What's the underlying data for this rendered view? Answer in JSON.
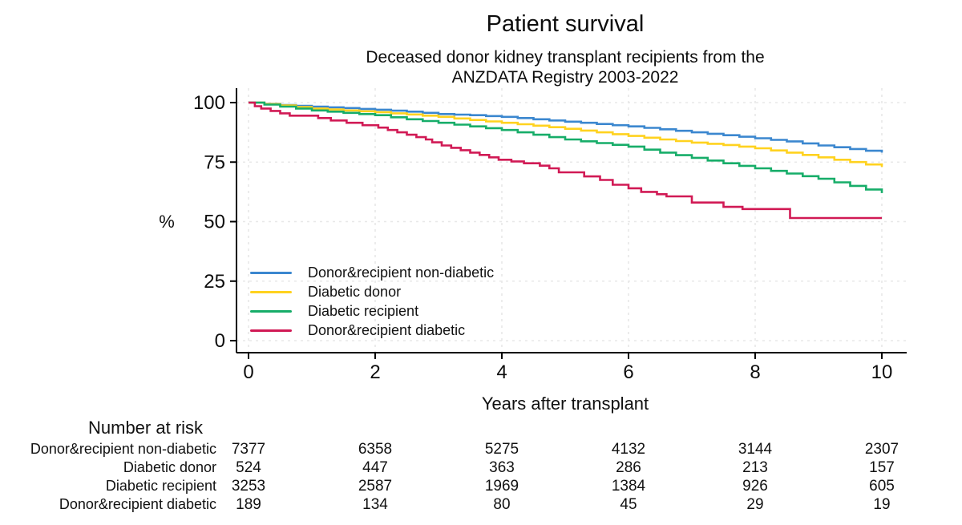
{
  "header": {
    "title": "Patient survival",
    "subtitle_line1": "Deceased donor kidney transplant recipients from the",
    "subtitle_line2": "ANZDATA Registry 2003-2022"
  },
  "chart_data": {
    "type": "line",
    "subtype": "kaplan-meier-step",
    "title": "Patient survival",
    "subtitle": "Deceased donor kidney transplant recipients from the ANZDATA Registry 2003-2022",
    "xlabel": "Years after transplant",
    "ylabel": "%",
    "xlim": [
      0,
      10
    ],
    "ylim": [
      0,
      100
    ],
    "x_ticks": [
      0,
      2,
      4,
      6,
      8,
      10
    ],
    "y_ticks": [
      0,
      25,
      50,
      75,
      100
    ],
    "grid": "light-dashed-both-axes",
    "legend_position": "inside-lower-left",
    "axis_color": "#000000",
    "grid_color": "#e8e8e8",
    "series": [
      {
        "name": "Donor&recipient non-diabetic",
        "color": "#3b87cf",
        "step": "smooth",
        "points": [
          [
            0,
            100
          ],
          [
            0.5,
            99
          ],
          [
            1,
            98.3
          ],
          [
            1.5,
            97.7
          ],
          [
            2,
            97
          ],
          [
            2.5,
            96.2
          ],
          [
            3,
            95.2
          ],
          [
            3.5,
            94.7
          ],
          [
            4,
            94
          ],
          [
            4.5,
            93
          ],
          [
            5,
            92
          ],
          [
            5.5,
            91
          ],
          [
            6,
            90
          ],
          [
            6.5,
            88.8
          ],
          [
            7,
            87.5
          ],
          [
            7.5,
            86.3
          ],
          [
            8,
            85
          ],
          [
            8.5,
            83.7
          ],
          [
            9,
            82
          ],
          [
            9.5,
            80.5
          ],
          [
            10,
            79
          ]
        ]
      },
      {
        "name": "Diabetic donor",
        "color": "#ffd21f",
        "step": "smooth",
        "points": [
          [
            0,
            100
          ],
          [
            0.5,
            98.8
          ],
          [
            1,
            97.5
          ],
          [
            1.5,
            96.7
          ],
          [
            2,
            96
          ],
          [
            2.5,
            95
          ],
          [
            3,
            94
          ],
          [
            3.5,
            92.7
          ],
          [
            4,
            91.5
          ],
          [
            4.5,
            90.3
          ],
          [
            5,
            89
          ],
          [
            5.5,
            87.5
          ],
          [
            6,
            86
          ],
          [
            6.5,
            84.5
          ],
          [
            7,
            83.2
          ],
          [
            7.5,
            82.2
          ],
          [
            8,
            80.8
          ],
          [
            8.5,
            79
          ],
          [
            9,
            77
          ],
          [
            9.5,
            75
          ],
          [
            10,
            73
          ]
        ]
      },
      {
        "name": "Diabetic recipient",
        "color": "#17ad69",
        "step": "smooth",
        "points": [
          [
            0,
            100
          ],
          [
            0.5,
            98.3
          ],
          [
            1,
            96.7
          ],
          [
            1.5,
            95.7
          ],
          [
            2,
            94.7
          ],
          [
            2.5,
            93
          ],
          [
            3,
            91.5
          ],
          [
            3.5,
            90
          ],
          [
            4,
            88.5
          ],
          [
            4.5,
            86.5
          ],
          [
            5,
            84.5
          ],
          [
            5.5,
            83
          ],
          [
            6,
            81.5
          ],
          [
            6.5,
            79
          ],
          [
            7,
            76.8
          ],
          [
            7.5,
            74.5
          ],
          [
            8,
            72.4
          ],
          [
            8.5,
            70.2
          ],
          [
            9,
            68
          ],
          [
            9.5,
            65
          ],
          [
            10,
            62
          ]
        ]
      },
      {
        "name": "Donor&recipient diabetic",
        "color": "#d11a55",
        "step": "exact",
        "points": [
          [
            0,
            100
          ],
          [
            0.1,
            98.5
          ],
          [
            0.2,
            97.5
          ],
          [
            0.35,
            96.5
          ],
          [
            0.5,
            95.5
          ],
          [
            0.65,
            94.5
          ],
          [
            1.1,
            93.5
          ],
          [
            1.3,
            92.5
          ],
          [
            1.55,
            91.5
          ],
          [
            1.8,
            90.5
          ],
          [
            2.05,
            89.5
          ],
          [
            2.2,
            88.5
          ],
          [
            2.35,
            87.5
          ],
          [
            2.5,
            86.5
          ],
          [
            2.65,
            85.5
          ],
          [
            2.8,
            84.5
          ],
          [
            2.9,
            83.3
          ],
          [
            3.05,
            82
          ],
          [
            3.2,
            81
          ],
          [
            3.35,
            80
          ],
          [
            3.5,
            79
          ],
          [
            3.65,
            78
          ],
          [
            3.8,
            77
          ],
          [
            3.95,
            76
          ],
          [
            4.15,
            75.3
          ],
          [
            4.35,
            74.5
          ],
          [
            4.6,
            73.5
          ],
          [
            4.75,
            72.4
          ],
          [
            4.9,
            70.7
          ],
          [
            5.3,
            69
          ],
          [
            5.55,
            67.5
          ],
          [
            5.75,
            65.5
          ],
          [
            6,
            64
          ],
          [
            6.2,
            62.5
          ],
          [
            6.45,
            61.5
          ],
          [
            6.6,
            60.6
          ],
          [
            7,
            58
          ],
          [
            7.5,
            56.2
          ],
          [
            7.8,
            55.3
          ],
          [
            8.55,
            51.5
          ],
          [
            10,
            51.5
          ]
        ]
      }
    ]
  },
  "risk_table": {
    "title": "Number at risk",
    "time_points": [
      0,
      2,
      4,
      6,
      8,
      10
    ],
    "rows": [
      {
        "label": "Donor&recipient non-diabetic",
        "counts": [
          "7377",
          "6358",
          "5275",
          "4132",
          "3144",
          "2307"
        ]
      },
      {
        "label": "Diabetic donor",
        "counts": [
          "524",
          "447",
          "363",
          "286",
          "213",
          "157"
        ]
      },
      {
        "label": "Diabetic recipient",
        "counts": [
          "3253",
          "2587",
          "1969",
          "1384",
          "926",
          "605"
        ]
      },
      {
        "label": "Donor&recipient diabetic",
        "counts": [
          "189",
          "134",
          "80",
          "45",
          "29",
          "19"
        ]
      }
    ]
  }
}
